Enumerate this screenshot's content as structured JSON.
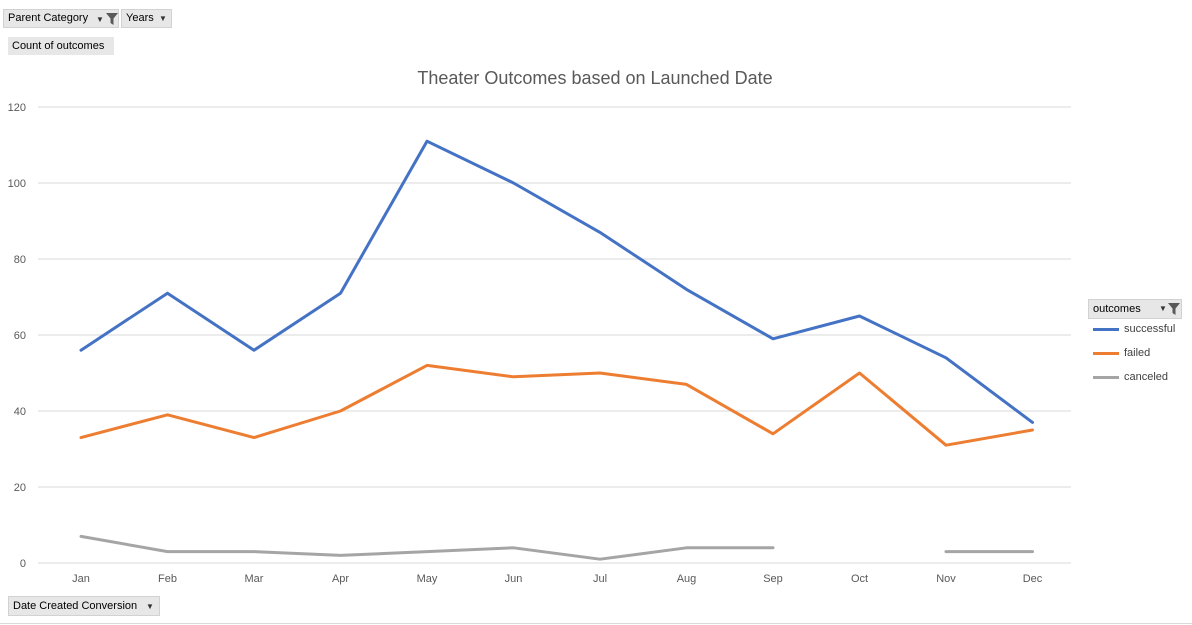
{
  "filters": {
    "parent_category_label": "Parent Category",
    "years_label": "Years"
  },
  "value_field": "Count of outcomes",
  "axis_field": "Date Created Conversion",
  "legend": {
    "header": "outcomes"
  },
  "colors": {
    "successful": "#4472c4",
    "failed": "#ed7d31",
    "canceled": "#a5a5a5",
    "gridline": "#d9d9d9",
    "field_button_bg": "#e7e7e7"
  },
  "icons": {
    "filter": "filter-funnel-icon",
    "dropdown": "dropdown-arrow-icon"
  },
  "chart_data": {
    "type": "line",
    "title": "Theater Outcomes based on Launched Date",
    "xlabel": "",
    "ylabel": "",
    "categories": [
      "Jan",
      "Feb",
      "Mar",
      "Apr",
      "May",
      "Jun",
      "Jul",
      "Aug",
      "Sep",
      "Oct",
      "Nov",
      "Dec"
    ],
    "ylim": [
      0,
      120
    ],
    "yticks": [
      0,
      20,
      40,
      60,
      80,
      100,
      120
    ],
    "grid": true,
    "legend_position": "right",
    "series": [
      {
        "name": "successful",
        "values": [
          56,
          71,
          56,
          71,
          111,
          100,
          87,
          72,
          59,
          65,
          54,
          37
        ]
      },
      {
        "name": "failed",
        "values": [
          33,
          39,
          33,
          40,
          52,
          49,
          50,
          47,
          34,
          50,
          31,
          35
        ]
      },
      {
        "name": "canceled",
        "values": [
          7,
          3,
          3,
          2,
          3,
          4,
          1,
          4,
          4,
          null,
          3,
          3
        ]
      }
    ]
  }
}
